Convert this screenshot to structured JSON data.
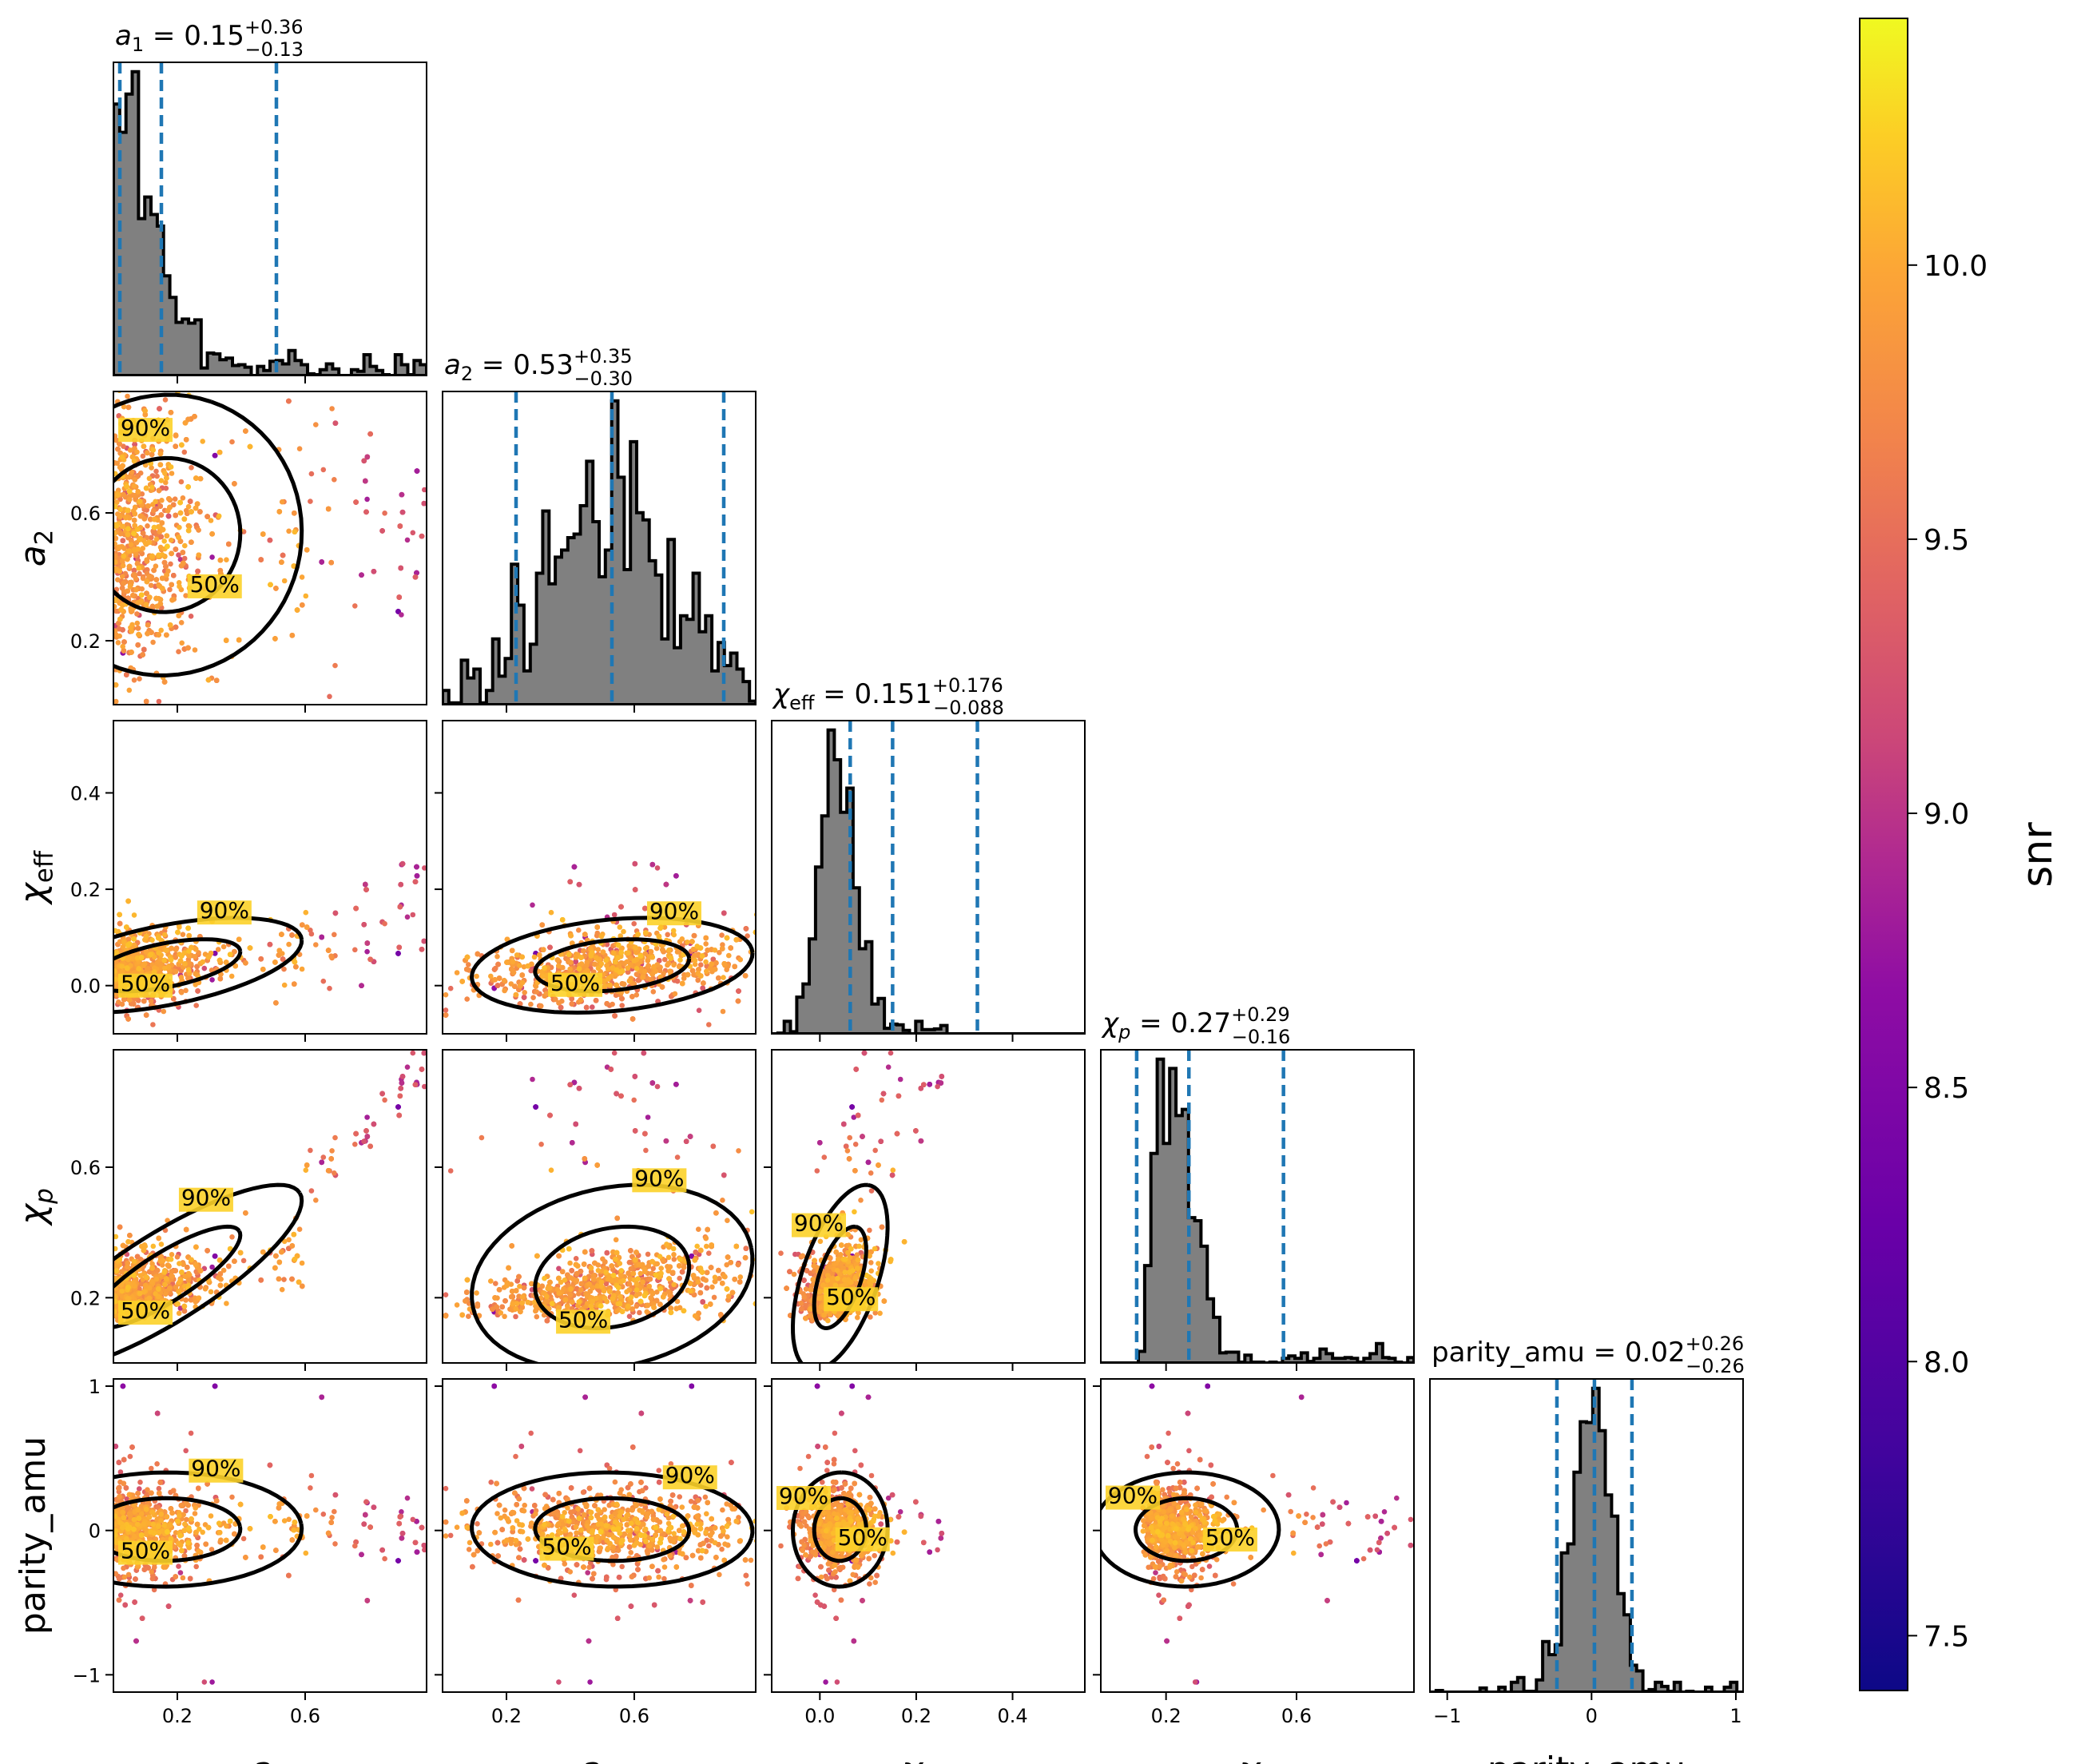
{
  "chart_data": {
    "type": "scatter",
    "subtype": "corner-plot",
    "parameters": [
      {
        "key": "a1",
        "label": "a",
        "sub": "1",
        "range": [
          0.0,
          0.98
        ],
        "ticks": [
          0.2,
          0.6
        ],
        "tick_labels": [
          "0.2",
          "0.6"
        ],
        "title": {
          "sym": "a",
          "sub": "1",
          "value": "0.15",
          "plus": "+0.36",
          "minus": "−0.13"
        },
        "median": 0.15,
        "lower": 0.02,
        "upper": 0.51
      },
      {
        "key": "a2",
        "label": "a",
        "sub": "2",
        "range": [
          0.0,
          0.98
        ],
        "ticks": [
          0.2,
          0.6
        ],
        "tick_labels": [
          "0.2",
          "0.6"
        ],
        "title": {
          "sym": "a",
          "sub": "2",
          "value": "0.53",
          "plus": "+0.35",
          "minus": "−0.30"
        },
        "median": 0.53,
        "lower": 0.23,
        "upper": 0.88
      },
      {
        "key": "chi_eff",
        "label": "χ",
        "sub": "eff",
        "range": [
          -0.1,
          0.55
        ],
        "ticks": [
          0.0,
          0.2,
          0.4
        ],
        "tick_labels": [
          "0.0",
          "0.2",
          "0.4"
        ],
        "title": {
          "sym": "χ",
          "sub": "eff",
          "value": "0.151",
          "plus": "+0.176",
          "minus": "−0.088"
        },
        "median": 0.151,
        "lower": 0.063,
        "upper": 0.327
      },
      {
        "key": "chi_p",
        "label": "χ",
        "sub": "p",
        "range": [
          0.0,
          0.96
        ],
        "ticks": [
          0.2,
          0.6
        ],
        "tick_labels": [
          "0.2",
          "0.6"
        ],
        "title": {
          "sym": "χ",
          "sub": "p",
          "value": "0.27",
          "plus": "+0.29",
          "minus": "−0.16"
        },
        "median": 0.27,
        "lower": 0.11,
        "upper": 0.56
      },
      {
        "key": "parity_amu",
        "label": "parity_amu",
        "sub": "",
        "range": [
          -1.12,
          1.05
        ],
        "ticks": [
          -1,
          0,
          1
        ],
        "tick_labels": [
          "−1",
          "0",
          "1"
        ],
        "title": {
          "sym": "parity_amu",
          "sub": "",
          "value": "0.02",
          "plus": "+0.26",
          "minus": "−0.26"
        },
        "median": 0.02,
        "lower": -0.24,
        "upper": 0.28
      }
    ],
    "contour_levels": [
      "50%",
      "90%"
    ],
    "colorbar": {
      "label": "snr",
      "range": [
        7.4,
        10.45
      ],
      "ticks": [
        7.5,
        8.0,
        8.5,
        9.0,
        9.5,
        10.0
      ],
      "tick_labels": [
        "7.5",
        "8.0",
        "8.5",
        "9.0",
        "9.5",
        "10.0"
      ],
      "colormap": "plasma"
    },
    "colors": {
      "histogram_fill": "#808080",
      "histogram_edge": "#000000",
      "quantile_line": "#1f77b4",
      "contour": "#000000"
    },
    "grid": false
  }
}
